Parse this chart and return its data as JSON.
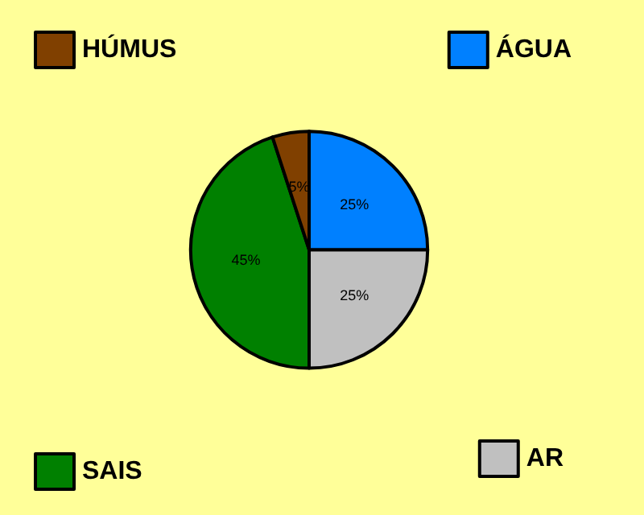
{
  "chart_data": {
    "type": "pie",
    "categories": [
      "ÁGUA",
      "AR",
      "SAIS",
      "HÚMUS"
    ],
    "values": [
      25,
      25,
      45,
      5
    ],
    "colors": [
      "#0080ff",
      "#c0c0c0",
      "#008000",
      "#804000"
    ],
    "legend": "bottom left",
    "value_labels": [
      "25%",
      "25%",
      "45%",
      "5%"
    ]
  }
}
